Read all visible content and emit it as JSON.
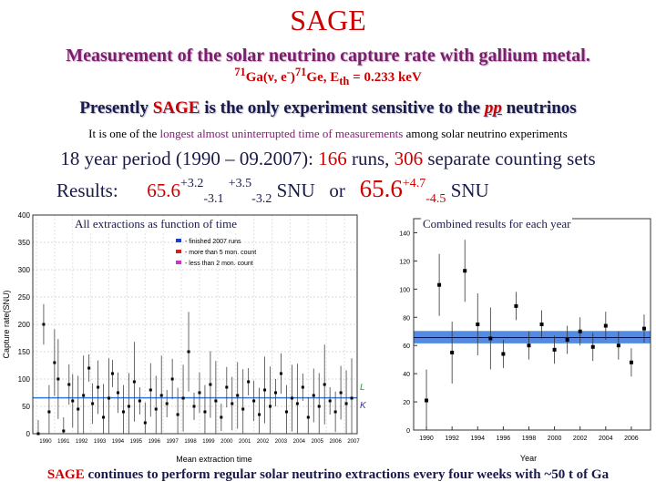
{
  "title": "SAGE",
  "subtitle": "Measurement of the solar neutrino capture rate with gallium metal.",
  "reaction": {
    "ga_mass": "71",
    "ga_text": "Ga(ν, e",
    "minus": "-",
    "mid": ")",
    "ge_mass": "71",
    "ge_text": "Ge, E",
    "th_sub": "th",
    "energy": " = 0.233 keV"
  },
  "statement": {
    "part1": "Presently ",
    "sage": "SAGE",
    "part2": " is the only experiment sensitive to the ",
    "pp": "pp",
    "part3": " neutrinos"
  },
  "longest": {
    "part1": "It is one of the ",
    "highlight": "longest almost uninterrupted time of measurements",
    "part2": " among solar neutrino experiments"
  },
  "period": {
    "part1": "18 year period (1990 – 09.2007): ",
    "runs": "166",
    "part2": " runs, ",
    "sets": "306",
    "part3": " separate counting sets"
  },
  "results": {
    "label": "Results:",
    "v1": "65.6",
    "v1_sup": "+3.2",
    "v1_sub": "-3.1",
    "v2_sup": "+3.5",
    "v2_sub": "-3.2",
    "unit1": " SNU   or   ",
    "v3": "65.6",
    "v3_sup": "+4.7",
    "v3_sub": "-4.5",
    "unit2": " SNU"
  },
  "left_panel": {
    "label": "All extractions as function of time",
    "ylabel": "Capture rate(SNU)",
    "xlabel": "Mean extraction time",
    "legend": [
      "- finished 2007 runs",
      "- more than 5 mon. count",
      "- less than 2 mon. count"
    ],
    "y_ticks": [
      "0",
      "50",
      "100",
      "150",
      "200",
      "250",
      "300",
      "350",
      "400"
    ],
    "x_ticks": [
      "1990",
      "1991",
      "1992",
      "1993",
      "1994",
      "1995",
      "1996",
      "1997",
      "1998",
      "1999",
      "2000",
      "2001",
      "2002",
      "2003",
      "2004",
      "2005",
      "2006",
      "2007"
    ],
    "side_labels": [
      "L",
      "K"
    ]
  },
  "right_panel": {
    "label": "Combined results for each year",
    "xlabel": "Year",
    "y_ticks": [
      "0",
      "20",
      "40",
      "60",
      "80",
      "100",
      "120",
      "140"
    ],
    "x_ticks": [
      "1990",
      "1992",
      "1994",
      "1996",
      "1998",
      "2000",
      "2002",
      "2004",
      "2006"
    ]
  },
  "chart_data": [
    {
      "type": "scatter",
      "xlabel": "Mean extraction time",
      "ylabel": "Capture rate(SNU)",
      "xlim": [
        1989.8,
        2007.7
      ],
      "ylim": [
        0,
        400
      ],
      "series": [
        {
          "points": [
            [
              1990.1,
              0
            ],
            [
              1990.4,
              200
            ],
            [
              1990.7,
              40
            ],
            [
              1991.0,
              130
            ],
            [
              1991.2,
              100
            ],
            [
              1991.5,
              5
            ],
            [
              1991.8,
              90
            ],
            [
              1992.0,
              60
            ],
            [
              1992.3,
              45
            ],
            [
              1992.6,
              70
            ],
            [
              1992.9,
              120
            ],
            [
              1993.1,
              55
            ],
            [
              1993.4,
              85
            ],
            [
              1993.7,
              30
            ],
            [
              1994.0,
              65
            ],
            [
              1994.2,
              110
            ],
            [
              1994.5,
              75
            ],
            [
              1994.8,
              40
            ],
            [
              1995.1,
              50
            ],
            [
              1995.4,
              95
            ],
            [
              1995.7,
              60
            ],
            [
              1996.0,
              20
            ],
            [
              1996.3,
              80
            ],
            [
              1996.6,
              45
            ],
            [
              1996.9,
              70
            ],
            [
              1997.2,
              55
            ],
            [
              1997.5,
              100
            ],
            [
              1997.8,
              35
            ],
            [
              1998.1,
              65
            ],
            [
              1998.4,
              150
            ],
            [
              1998.7,
              50
            ],
            [
              1999.0,
              75
            ],
            [
              1999.3,
              40
            ],
            [
              1999.6,
              90
            ],
            [
              1999.9,
              60
            ],
            [
              2000.2,
              30
            ],
            [
              2000.5,
              85
            ],
            [
              2000.8,
              55
            ],
            [
              2001.1,
              70
            ],
            [
              2001.4,
              45
            ],
            [
              2001.7,
              95
            ],
            [
              2002.0,
              60
            ],
            [
              2002.3,
              35
            ],
            [
              2002.6,
              80
            ],
            [
              2002.9,
              50
            ],
            [
              2003.2,
              75
            ],
            [
              2003.5,
              110
            ],
            [
              2003.8,
              40
            ],
            [
              2004.1,
              65
            ],
            [
              2004.4,
              55
            ],
            [
              2004.7,
              85
            ],
            [
              2005.0,
              30
            ],
            [
              2005.3,
              70
            ],
            [
              2005.6,
              50
            ],
            [
              2005.9,
              90
            ],
            [
              2006.2,
              60
            ],
            [
              2006.5,
              40
            ],
            [
              2006.8,
              75
            ],
            [
              2007.1,
              55
            ],
            [
              2007.4,
              65
            ]
          ]
        }
      ],
      "reference_lines": [
        65.6
      ]
    },
    {
      "type": "scatter",
      "xlabel": "Year",
      "xlim": [
        1989,
        2007.5
      ],
      "ylim": [
        0,
        150
      ],
      "x": [
        1990,
        1991,
        1992,
        1993,
        1994,
        1995,
        1996,
        1997,
        1998,
        1999,
        2000,
        2001,
        2002,
        2003,
        2004,
        2005,
        2006,
        2007
      ],
      "values": [
        21,
        103,
        55,
        113,
        75,
        65,
        54,
        88,
        60,
        75,
        57,
        64,
        70,
        59,
        74,
        60,
        48,
        72
      ],
      "reference_lines": [
        65.6
      ],
      "band": [
        61.5,
        70.3
      ]
    }
  ],
  "colors": {
    "title": "#cc0000",
    "subtitle": "#7a1f6e",
    "text": "#1a1a4a",
    "band": "#3377dd",
    "marker": "#000000"
  }
}
